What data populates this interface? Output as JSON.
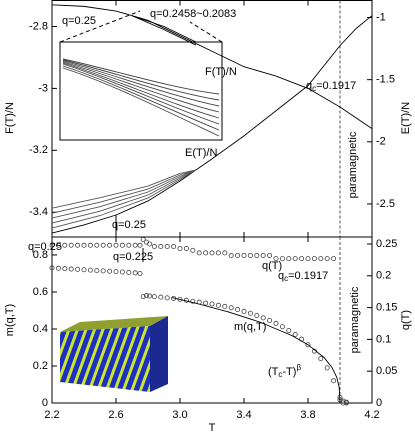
{
  "chart_data": [
    {
      "type": "line",
      "ylabel": "F(T)/N",
      "y2label": "E(T)/N",
      "xlim": [
        2.2,
        4.2
      ],
      "xticks": [
        2.2,
        2.6,
        3,
        3.4,
        3.8,
        4.2
      ],
      "ylim": [
        -3.48,
        -2.716
      ],
      "yticks": [
        -2.8,
        -3,
        -3.2,
        -3.4
      ],
      "y2lim": [
        -2.766,
        -0.863
      ],
      "y2ticks": [
        -1,
        -1.5,
        -2,
        -2.5
      ],
      "vline": 4.0,
      "series": [
        {
          "color": "#000000",
          "x": [
            2.2,
            2.4,
            2.6,
            2.8,
            3.0,
            3.2,
            3.4,
            3.6,
            3.8,
            4.0,
            4.2
          ],
          "values": [
            -2.73,
            -2.735,
            -2.75,
            -2.78,
            -2.83,
            -2.88,
            -2.93,
            -2.96,
            -3.0,
            -3.06,
            -3.13
          ]
        },
        {
          "color": "#000000",
          "x": [
            2.7,
            2.9,
            3.1
          ],
          "values": [
            -2.765,
            -2.8,
            -2.85
          ]
        },
        {
          "color": "#000000",
          "x": [
            2.7,
            2.9,
            3.1
          ],
          "values": [
            -2.765,
            -2.81,
            -2.86
          ]
        },
        {
          "color": "#000000",
          "axis": "y2",
          "x": [
            2.2,
            2.4,
            2.6,
            2.8,
            3.0,
            3.2,
            3.4,
            3.6,
            3.8,
            4.0,
            4.1,
            4.2
          ],
          "values": [
            -2.734,
            -2.669,
            -2.589,
            -2.476,
            -2.315,
            -2.137,
            -1.952,
            -1.75,
            -1.548,
            -1.226,
            -1.089,
            -0.984
          ]
        },
        {
          "color": "#555555",
          "axis": "y2",
          "x": [
            2.2,
            2.5,
            2.8,
            3.0,
            3.1
          ],
          "values": [
            -2.694,
            -2.594,
            -2.452,
            -2.303,
            -2.226
          ]
        },
        {
          "color": "#555555",
          "axis": "y2",
          "x": [
            2.2,
            2.5,
            2.8,
            3.0,
            3.1
          ],
          "values": [
            -2.654,
            -2.558,
            -2.428,
            -2.291,
            -2.226
          ]
        },
        {
          "color": "#555555",
          "axis": "y2",
          "x": [
            2.2,
            2.5,
            2.8,
            3.0,
            3.1
          ],
          "values": [
            -2.614,
            -2.522,
            -2.404,
            -2.279,
            -2.226
          ]
        },
        {
          "color": "#555555",
          "axis": "y2",
          "x": [
            2.2,
            2.5,
            2.8,
            3.0,
            3.1
          ],
          "values": [
            -2.574,
            -2.486,
            -2.38,
            -2.267,
            -2.226
          ]
        },
        {
          "color": "#555555",
          "axis": "y2",
          "x": [
            2.2,
            2.5,
            2.8,
            3.0,
            3.1
          ],
          "values": [
            -2.534,
            -2.45,
            -2.356,
            -2.255,
            -2.226
          ]
        }
      ],
      "annotations": [
        "q=0.25",
        "q=0.2458~0.2083",
        "F(T)/N",
        {
          "text": "q",
          "sub": "c",
          "tail": "=0.1917"
        },
        "E(T)/N",
        "q=0.25",
        "paramagnetic"
      ]
    },
    {
      "type": "scatter",
      "xlabel": "T",
      "ylabel": "m(q,T)",
      "y2label": "q(T)",
      "xlim": [
        2.2,
        4.2
      ],
      "xticks": [
        2.2,
        2.6,
        {
          "value": 3,
          "label": "3.0"
        },
        3.4,
        3.8,
        4.2
      ],
      "ylim": [
        0,
        0.897
      ],
      "yticks": [
        0,
        0.2,
        0.4,
        0.6,
        0.8
      ],
      "y2lim": [
        0,
        0.261
      ],
      "y2ticks": [
        0,
        0.05,
        0.1,
        0.15,
        0.2,
        0.25
      ],
      "vline": 4.0,
      "x": [
        2.2,
        2.24,
        2.28,
        2.32,
        2.36,
        2.4,
        2.44,
        2.48,
        2.52,
        2.56,
        2.6,
        2.64,
        2.68,
        2.72,
        2.75,
        2.77,
        2.79,
        2.81,
        2.84,
        2.88,
        2.92,
        2.96,
        3.0,
        3.04,
        3.08,
        3.12,
        3.16,
        3.2,
        3.24,
        3.28,
        3.32,
        3.36,
        3.4,
        3.44,
        3.48,
        3.52,
        3.56,
        3.6,
        3.64,
        3.68,
        3.72,
        3.76,
        3.8,
        3.84,
        3.88,
        3.92,
        3.96,
        4.0,
        4.02,
        4.04
      ],
      "series": [
        {
          "style": "markers",
          "color": "#444444",
          "axis": "y2",
          "values": [
            0.248,
            0.248,
            0.248,
            0.248,
            0.248,
            0.248,
            0.248,
            0.248,
            0.248,
            0.248,
            0.248,
            0.248,
            0.248,
            0.248,
            0.248,
            0.257,
            0.253,
            0.25,
            0.246,
            0.246,
            0.246,
            0.246,
            0.243,
            0.243,
            0.24,
            0.236,
            0.236,
            0.236,
            0.236,
            0.236,
            0.232,
            0.232,
            0.232,
            0.232,
            0.232,
            0.232,
            0.232,
            0.227,
            0.227,
            0.227,
            0.227,
            0.227,
            0.227,
            0.227,
            0.227,
            0.227,
            0.227,
            0.005,
            0,
            0
          ]
        },
        {
          "style": "markers",
          "color": "#444444",
          "values": [
            0.73,
            0.728,
            0.726,
            0.724,
            0.722,
            0.72,
            0.718,
            0.716,
            0.714,
            0.712,
            0.71,
            0.708,
            0.706,
            0.703,
            0.7,
            0.575,
            0.58,
            0.578,
            0.575,
            0.572,
            0.568,
            0.565,
            0.56,
            0.555,
            0.55,
            0.545,
            0.54,
            0.535,
            0.528,
            0.522,
            0.515,
            0.505,
            0.495,
            0.485,
            0.473,
            0.46,
            0.446,
            0.43,
            0.412,
            0.392,
            0.37,
            0.345,
            0.315,
            0.28,
            0.24,
            0.19,
            0.12,
            0.03,
            0.01,
            0.005
          ]
        },
        {
          "style": "line",
          "color": "#000000",
          "x": [
            2.95,
            3.1,
            3.3,
            3.5,
            3.7,
            3.8,
            3.9,
            3.95,
            3.98,
            3.995,
            4.0
          ],
          "values": [
            0.57,
            0.539,
            0.493,
            0.437,
            0.364,
            0.315,
            0.246,
            0.192,
            0.138,
            0.085,
            0
          ]
        }
      ],
      "annotations": [
        "q=0.25",
        "q=0.225",
        "q(T)",
        {
          "text": "q",
          "sub": "c",
          "tail": "=0.1917"
        },
        "m(q,T)",
        {
          "text": "(T",
          "sub": "c",
          "tail": "-T)",
          "sup": "β"
        },
        "paramagnetic"
      ]
    }
  ]
}
